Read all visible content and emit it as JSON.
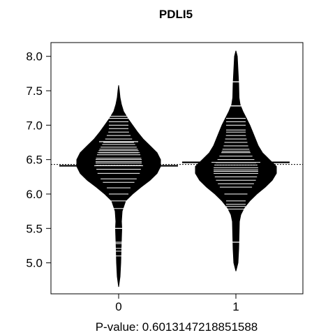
{
  "chart_data": {
    "type": "beanplot",
    "title": "PDLI5",
    "xlabel": "P-value: 0.6013147218851588",
    "ylabel": "",
    "categories": [
      "0",
      "1"
    ],
    "ylim": [
      4.55,
      8.2
    ],
    "yticks": [
      "5.0",
      "5.5",
      "6.0",
      "6.5",
      "7.0",
      "7.5",
      "8.0"
    ],
    "overall_mean": 6.43,
    "series": [
      {
        "category": "0",
        "group_mean": 6.41,
        "range": [
          4.65,
          7.58
        ],
        "density": [
          [
            4.65,
            0.0
          ],
          [
            4.8,
            0.02
          ],
          [
            5.0,
            0.03
          ],
          [
            5.2,
            0.035
          ],
          [
            5.35,
            0.04
          ],
          [
            5.5,
            0.045
          ],
          [
            5.6,
            0.04
          ],
          [
            5.75,
            0.05
          ],
          [
            5.9,
            0.1
          ],
          [
            6.0,
            0.2
          ],
          [
            6.1,
            0.32
          ],
          [
            6.2,
            0.45
          ],
          [
            6.3,
            0.55
          ],
          [
            6.4,
            0.6
          ],
          [
            6.5,
            0.6
          ],
          [
            6.6,
            0.55
          ],
          [
            6.7,
            0.45
          ],
          [
            6.8,
            0.35
          ],
          [
            6.9,
            0.27
          ],
          [
            7.0,
            0.2
          ],
          [
            7.1,
            0.13
          ],
          [
            7.2,
            0.07
          ],
          [
            7.3,
            0.04
          ],
          [
            7.4,
            0.02
          ],
          [
            7.5,
            0.01
          ],
          [
            7.58,
            0.0
          ]
        ],
        "observations": [
          5.1,
          5.17,
          5.21,
          5.28,
          5.3,
          5.5,
          5.79,
          5.9,
          6.0,
          6.09,
          6.17,
          6.22,
          6.3,
          6.36,
          6.42,
          6.45,
          6.47,
          6.5,
          6.52,
          6.57,
          6.6,
          6.63,
          6.65,
          6.68,
          6.72,
          6.75,
          6.8,
          6.85,
          6.9,
          6.95,
          7.0,
          7.05,
          7.1,
          7.13
        ],
        "long_lines": [
          5.5,
          6.6,
          6.76,
          6.42
        ]
      },
      {
        "category": "1",
        "group_mean": 6.46,
        "range": [
          4.88,
          8.08
        ],
        "density": [
          [
            4.88,
            0.0
          ],
          [
            5.0,
            0.03
          ],
          [
            5.2,
            0.04
          ],
          [
            5.4,
            0.045
          ],
          [
            5.6,
            0.05
          ],
          [
            5.7,
            0.07
          ],
          [
            5.8,
            0.12
          ],
          [
            5.9,
            0.2
          ],
          [
            6.0,
            0.3
          ],
          [
            6.1,
            0.42
          ],
          [
            6.2,
            0.52
          ],
          [
            6.3,
            0.58
          ],
          [
            6.4,
            0.58
          ],
          [
            6.5,
            0.48
          ],
          [
            6.6,
            0.38
          ],
          [
            6.7,
            0.32
          ],
          [
            6.8,
            0.28
          ],
          [
            6.9,
            0.24
          ],
          [
            7.0,
            0.2
          ],
          [
            7.1,
            0.15
          ],
          [
            7.2,
            0.1
          ],
          [
            7.3,
            0.06
          ],
          [
            7.4,
            0.045
          ],
          [
            7.6,
            0.04
          ],
          [
            7.8,
            0.03
          ],
          [
            8.0,
            0.02
          ],
          [
            8.08,
            0.0
          ]
        ],
        "observations": [
          5.3,
          5.78,
          5.82,
          5.85,
          5.9,
          6.0,
          6.1,
          6.15,
          6.2,
          6.25,
          6.3,
          6.33,
          6.35,
          6.38,
          6.42,
          6.45,
          6.5,
          6.55,
          6.6,
          6.62,
          6.65,
          6.7,
          6.75,
          6.8,
          6.85,
          6.9,
          6.93,
          7.0,
          7.05,
          7.1,
          7.28,
          7.63
        ],
        "long_lines": [
          7.63,
          7.28,
          5.3,
          6.46
        ]
      }
    ]
  }
}
